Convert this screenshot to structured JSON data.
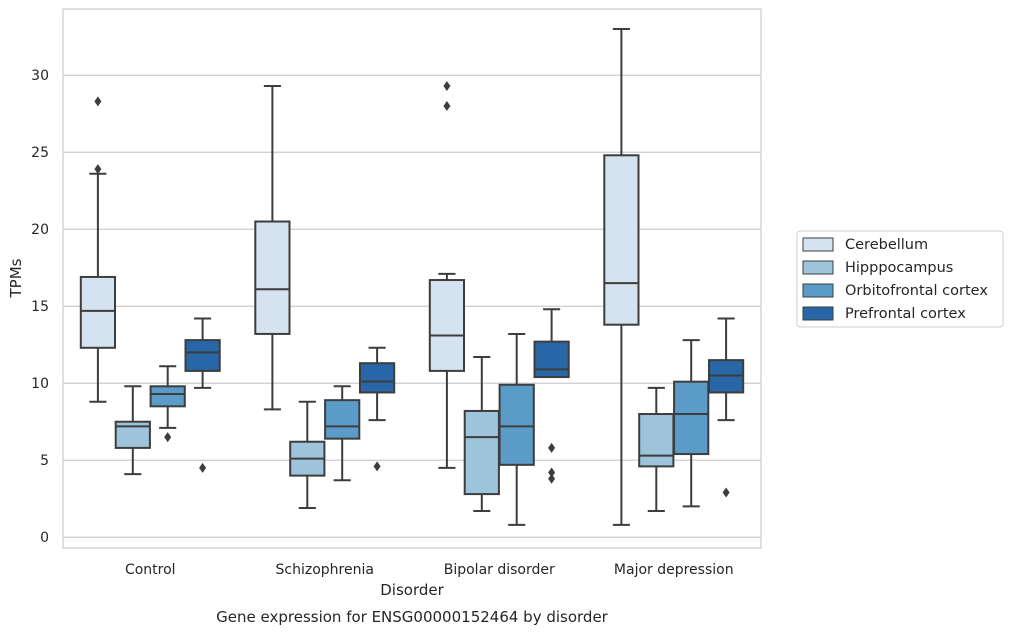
{
  "chart_data": {
    "type": "box",
    "title": "",
    "caption": "Gene expression for ENSG00000152464 by disorder",
    "xlabel": "Disorder",
    "ylabel": "TPMs",
    "categories": [
      "Control",
      "Schizophrenia",
      "Bipolar disorder",
      "Major depression"
    ],
    "ylim": [
      -0.7,
      34.3
    ],
    "yticks": [
      0,
      5,
      10,
      15,
      20,
      25,
      30
    ],
    "grid": "horizontal",
    "legend_position": "right",
    "series": [
      {
        "name": "Cerebellum",
        "color": "#d5e2f0",
        "boxes": [
          {
            "whislo": 8.8,
            "q1": 12.3,
            "med": 14.7,
            "q3": 16.9,
            "whishi": 23.6,
            "fliers": [
              23.9,
              28.3
            ]
          },
          {
            "whislo": 8.3,
            "q1": 13.2,
            "med": 16.1,
            "q3": 20.5,
            "whishi": 29.3,
            "fliers": []
          },
          {
            "whislo": 4.5,
            "q1": 10.8,
            "med": 13.1,
            "q3": 16.7,
            "whishi": 17.1,
            "fliers": [
              28.0,
              29.3
            ]
          },
          {
            "whislo": 0.8,
            "q1": 13.8,
            "med": 16.5,
            "q3": 24.8,
            "whishi": 33.0,
            "fliers": []
          }
        ]
      },
      {
        "name": "Hipppocampus",
        "color": "#9ec4dc",
        "boxes": [
          {
            "whislo": 4.1,
            "q1": 5.8,
            "med": 7.2,
            "q3": 7.5,
            "whishi": 9.8,
            "fliers": []
          },
          {
            "whislo": 1.9,
            "q1": 4.0,
            "med": 5.1,
            "q3": 6.2,
            "whishi": 8.8,
            "fliers": []
          },
          {
            "whislo": 1.7,
            "q1": 2.8,
            "med": 6.5,
            "q3": 8.2,
            "whishi": 11.7,
            "fliers": []
          },
          {
            "whislo": 1.7,
            "q1": 4.6,
            "med": 5.3,
            "q3": 8.0,
            "whishi": 9.7,
            "fliers": []
          }
        ]
      },
      {
        "name": "Orbitofrontal cortex",
        "color": "#5b9bc8",
        "boxes": [
          {
            "whislo": 7.1,
            "q1": 8.5,
            "med": 9.3,
            "q3": 9.8,
            "whishi": 11.1,
            "fliers": [
              6.5
            ]
          },
          {
            "whislo": 3.7,
            "q1": 6.4,
            "med": 7.2,
            "q3": 8.9,
            "whishi": 9.8,
            "fliers": []
          },
          {
            "whislo": 0.8,
            "q1": 4.7,
            "med": 7.2,
            "q3": 9.9,
            "whishi": 13.2,
            "fliers": []
          },
          {
            "whislo": 2.0,
            "q1": 5.4,
            "med": 8.0,
            "q3": 10.1,
            "whishi": 12.8,
            "fliers": []
          }
        ]
      },
      {
        "name": "Prefrontal cortex",
        "color": "#2866a8",
        "boxes": [
          {
            "whislo": 9.7,
            "q1": 10.8,
            "med": 12.0,
            "q3": 12.8,
            "whishi": 14.2,
            "fliers": [
              4.5
            ]
          },
          {
            "whislo": 7.6,
            "q1": 9.4,
            "med": 10.1,
            "q3": 11.3,
            "whishi": 12.3,
            "fliers": [
              4.6
            ]
          },
          {
            "whislo": 10.4,
            "q1": 10.4,
            "med": 10.9,
            "q3": 12.7,
            "whishi": 14.8,
            "fliers": [
              3.8,
              4.2,
              5.8
            ]
          },
          {
            "whislo": 7.6,
            "q1": 9.4,
            "med": 10.5,
            "q3": 11.5,
            "whishi": 14.2,
            "fliers": [
              2.9
            ]
          }
        ]
      }
    ]
  }
}
